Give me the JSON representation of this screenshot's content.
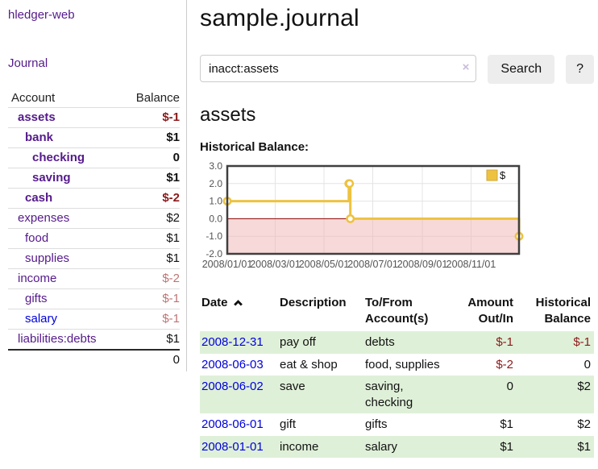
{
  "app": {
    "title": "hledger-web"
  },
  "nav": {
    "journal": "Journal"
  },
  "sidebar": {
    "headers": {
      "account": "Account",
      "balance": "Balance"
    },
    "accounts": [
      {
        "name": "assets",
        "level": 1,
        "bold": true,
        "balance": "$-1",
        "negative": "strong"
      },
      {
        "name": "bank",
        "level": 2,
        "bold": true,
        "balance": "$1"
      },
      {
        "name": "checking",
        "level": 3,
        "bold": true,
        "balance": "0"
      },
      {
        "name": "saving",
        "level": 3,
        "bold": true,
        "balance": "$1"
      },
      {
        "name": "cash",
        "level": 2,
        "bold": true,
        "balance": "$-2",
        "negative": "strong"
      },
      {
        "name": "expenses",
        "level": 1,
        "bold": false,
        "balance": "$2"
      },
      {
        "name": "food",
        "level": 2,
        "bold": false,
        "balance": "$1"
      },
      {
        "name": "supplies",
        "level": 2,
        "bold": false,
        "balance": "$1"
      },
      {
        "name": "income",
        "level": 1,
        "bold": false,
        "balance": "$-2",
        "negative": "soft"
      },
      {
        "name": "gifts",
        "level": 2,
        "bold": false,
        "balance": "$-1",
        "negative": "soft"
      },
      {
        "name": "salary",
        "level": 2,
        "bold": false,
        "balance": "$-1",
        "negative": "soft",
        "unvisited": true
      },
      {
        "name": "liabilities:debts",
        "level": 1,
        "bold": false,
        "balance": "$1"
      }
    ],
    "total": "0"
  },
  "header": {
    "title": "sample.journal"
  },
  "search": {
    "value": "inacct:assets",
    "clear_icon": "×",
    "button": "Search",
    "help": "?"
  },
  "account_page": {
    "title": "assets",
    "chart_label": "Historical Balance:"
  },
  "chart_data": {
    "type": "line",
    "title": "Historical Balance",
    "series": [
      {
        "name": "$",
        "color": "#edc240",
        "step": true,
        "points": [
          [
            "2008-01-01",
            1
          ],
          [
            "2008-06-01",
            2
          ],
          [
            "2008-06-02",
            2
          ],
          [
            "2008-06-03",
            0
          ],
          [
            "2008-12-31",
            -1
          ]
        ]
      }
    ],
    "xlim": [
      "2008-01-01",
      "2008-12-31"
    ],
    "ylim": [
      -2,
      3
    ],
    "y_ticks": [
      -2,
      -1,
      0,
      1,
      2,
      3
    ],
    "x_ticks": [
      "2008/01/01",
      "2008/03/01",
      "2008/05/01",
      "2008/07/01",
      "2008/09/01",
      "2008/11/01"
    ],
    "legend": {
      "position": "top-right",
      "label": "$"
    },
    "grid": true,
    "zero_line_color": "#8b0000",
    "negative_region_color": "#f0b4b4",
    "axis_text_color": "#545454",
    "border_color": "#3f3f3f",
    "grid_color": "#e4e4e4",
    "legend_border_color": "#d3a73a"
  },
  "transactions": {
    "headers": [
      "Date",
      "Description",
      "To/From Account(s)",
      "Amount Out/In",
      "Historical Balance"
    ],
    "rows": [
      {
        "date": "2008-12-31",
        "description": "pay off",
        "accounts": "debts",
        "amount": "$-1",
        "balance": "$-1"
      },
      {
        "date": "2008-06-03",
        "description": "eat & shop",
        "accounts": "food, supplies",
        "amount": "$-2",
        "balance": "0"
      },
      {
        "date": "2008-06-02",
        "description": "save",
        "accounts": "saving, checking",
        "amount": "0",
        "balance": "$2"
      },
      {
        "date": "2008-06-01",
        "description": "gift",
        "accounts": "gifts",
        "amount": "$1",
        "balance": "$2"
      },
      {
        "date": "2008-01-01",
        "description": "income",
        "accounts": "salary",
        "amount": "$1",
        "balance": "$1"
      }
    ]
  }
}
